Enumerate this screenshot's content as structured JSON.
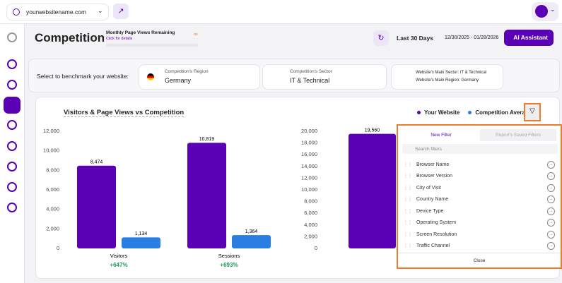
{
  "topbar": {
    "domain": "yourwebsitename.com"
  },
  "header": {
    "title": "Competition",
    "page_views_label": "Monthly Page Views Remaining",
    "page_views_link": "Click for details",
    "page_views_value": "∞",
    "period": "Last 30 Days",
    "date_range": "12/30/2025 - 01/28/2026",
    "ai_button": "AI Assistant"
  },
  "benchmark": {
    "prompt": "Select to benchmark your website:",
    "region_label": "Competition's Region",
    "region_value": "Germany",
    "sector_label": "Competition's Sector",
    "sector_value": "IT & Technical",
    "main_sector": "Website's Main Sector: IT & Technical",
    "main_region": "Website's Main Region: Germany"
  },
  "card": {
    "title": "Visitors & Page Views vs Competition"
  },
  "chart_data": [
    {
      "type": "bar",
      "categories": [
        "Visitors",
        "Sessions"
      ],
      "annotations": [
        "+647%",
        "+693%"
      ],
      "series": [
        {
          "name": "Your Website",
          "color": "#5a00b5",
          "values": [
            8474,
            10819
          ],
          "value_labels": [
            "8,474",
            "10,819"
          ]
        },
        {
          "name": "Competition Average",
          "color": "#2a7de1",
          "values": [
            1134,
            1364
          ],
          "value_labels": [
            "1,134",
            "1,364"
          ]
        }
      ],
      "ylim": [
        0,
        12000
      ],
      "yticks": [
        0,
        {
          "value": 2000,
          "label": "2,000"
        },
        {
          "value": 4000,
          "label": "4,000"
        },
        {
          "value": 6000,
          "label": "6,000"
        },
        {
          "value": 8000,
          "label": "8,000"
        },
        {
          "value": 10000,
          "label": "10,000"
        },
        {
          "value": 12000,
          "label": "12,000"
        }
      ],
      "grid": false
    },
    {
      "type": "bar",
      "categories": [
        null
      ],
      "series": [
        {
          "color": "#5a00b5",
          "values": [
            19560
          ],
          "value_labels": [
            "19,560"
          ]
        }
      ],
      "ylim": [
        0,
        20000
      ],
      "yticks": [
        0,
        {
          "value": 2000,
          "label": "2,000"
        },
        {
          "value": 4000,
          "label": "4,000"
        },
        {
          "value": 6000,
          "label": "6,000"
        },
        {
          "value": 8000,
          "label": "8,000"
        },
        {
          "value": 10000,
          "label": "10,000"
        },
        {
          "value": 12000,
          "label": "12,000"
        },
        {
          "value": 14000,
          "label": "14,000"
        },
        {
          "value": 16000,
          "label": "16,000"
        },
        {
          "value": 18000,
          "label": "18,000"
        },
        {
          "value": 20000,
          "label": "20,000"
        }
      ],
      "grid": false
    }
  ],
  "filter_panel": {
    "tabs": [
      "New Filter",
      "Report's Saved Filters"
    ],
    "search_placeholder": "Search filters",
    "items": [
      "Browser Name",
      "Browser Version",
      "City of Visit",
      "Country Name",
      "Device Type",
      "Operating System",
      "Screen Resolution",
      "Traffic Channel"
    ],
    "close": "Close"
  }
}
